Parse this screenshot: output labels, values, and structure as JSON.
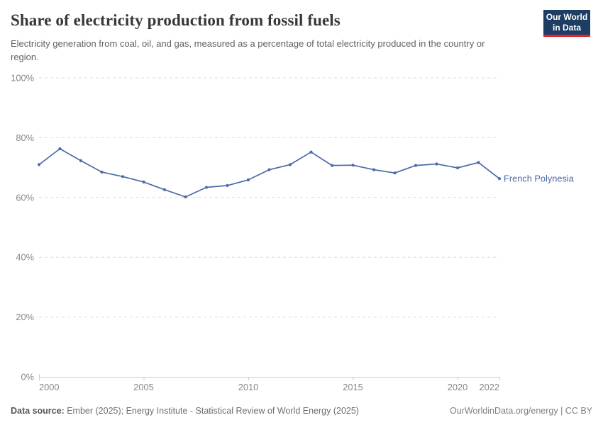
{
  "header": {
    "title": "Share of electricity production from fossil fuels",
    "subtitle": "Electricity generation from coal, oil, and gas, measured as a percentage of total electricity produced in the country or region.",
    "logo": {
      "line1": "Our World",
      "line2": "in Data"
    }
  },
  "chart_data": {
    "type": "line",
    "title": "Share of electricity production from fossil fuels",
    "x": [
      2000,
      2001,
      2002,
      2003,
      2004,
      2005,
      2006,
      2007,
      2008,
      2009,
      2010,
      2011,
      2012,
      2013,
      2014,
      2015,
      2016,
      2017,
      2018,
      2019,
      2020,
      2021,
      2022
    ],
    "series": [
      {
        "name": "French Polynesia",
        "color": "#4a6ba8",
        "values": [
          71.0,
          76.3,
          72.3,
          68.5,
          67.0,
          65.2,
          62.6,
          60.2,
          63.4,
          64.0,
          65.9,
          69.3,
          71.0,
          75.2,
          70.7,
          70.8,
          69.3,
          68.2,
          70.7,
          71.2,
          69.9,
          71.7,
          66.3
        ]
      }
    ],
    "xlabel": "",
    "ylabel": "",
    "xlim": [
      2000,
      2022
    ],
    "ylim": [
      0,
      100
    ],
    "xticks": [
      2000,
      2005,
      2010,
      2015,
      2020,
      2022
    ],
    "yticks": [
      0,
      20,
      40,
      60,
      80,
      100
    ],
    "ytick_suffix": "%",
    "grid": "horizontal-dashed",
    "legend_position": "end-of-line-label"
  },
  "footer": {
    "source_label": "Data source:",
    "source_text": " Ember (2025); Energy Institute - Statistical Review of World Energy (2025)",
    "right_text": "OurWorldinData.org/energy | CC BY"
  },
  "colors": {
    "line": "#4a6ba8",
    "grid": "#dcdcdc",
    "axis": "#cccccc",
    "tick_label": "#878787",
    "logo_bg": "#1d3d63",
    "logo_stripe": "#e0232e"
  }
}
